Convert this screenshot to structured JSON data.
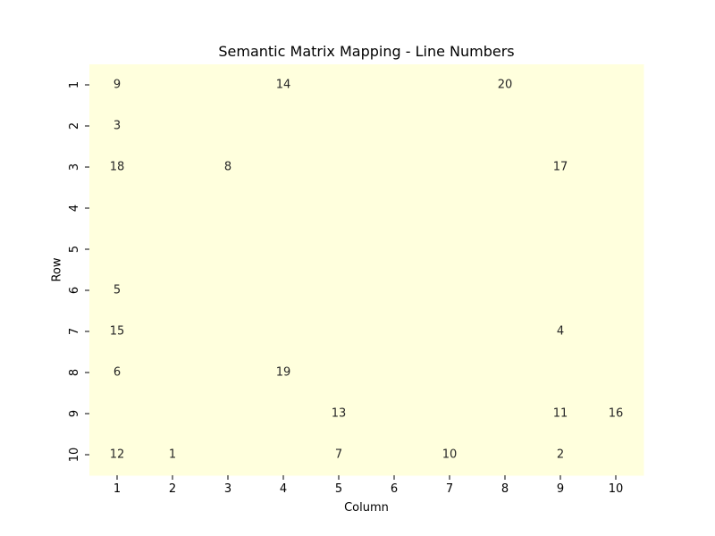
{
  "chart_data": {
    "type": "heatmap",
    "title": "Semantic Matrix Mapping - Line Numbers",
    "xlabel": "Column",
    "ylabel": "Row",
    "x_ticks": [
      "1",
      "2",
      "3",
      "4",
      "5",
      "6",
      "7",
      "8",
      "9",
      "10"
    ],
    "y_ticks": [
      "1",
      "2",
      "3",
      "4",
      "5",
      "6",
      "7",
      "8",
      "9",
      "10"
    ],
    "cell_color": "#ffffdd",
    "colorbar": false,
    "cells": [
      {
        "row": 1,
        "col": 1,
        "value": 9
      },
      {
        "row": 1,
        "col": 4,
        "value": 14
      },
      {
        "row": 1,
        "col": 8,
        "value": 20
      },
      {
        "row": 2,
        "col": 1,
        "value": 3
      },
      {
        "row": 3,
        "col": 1,
        "value": 18
      },
      {
        "row": 3,
        "col": 3,
        "value": 8
      },
      {
        "row": 3,
        "col": 9,
        "value": 17
      },
      {
        "row": 6,
        "col": 1,
        "value": 5
      },
      {
        "row": 7,
        "col": 1,
        "value": 15
      },
      {
        "row": 7,
        "col": 9,
        "value": 4
      },
      {
        "row": 8,
        "col": 1,
        "value": 6
      },
      {
        "row": 8,
        "col": 4,
        "value": 19
      },
      {
        "row": 9,
        "col": 5,
        "value": 13
      },
      {
        "row": 9,
        "col": 9,
        "value": 11
      },
      {
        "row": 9,
        "col": 10,
        "value": 16
      },
      {
        "row": 10,
        "col": 1,
        "value": 12
      },
      {
        "row": 10,
        "col": 2,
        "value": 1
      },
      {
        "row": 10,
        "col": 5,
        "value": 7
      },
      {
        "row": 10,
        "col": 7,
        "value": 10
      },
      {
        "row": 10,
        "col": 9,
        "value": 2
      }
    ]
  }
}
